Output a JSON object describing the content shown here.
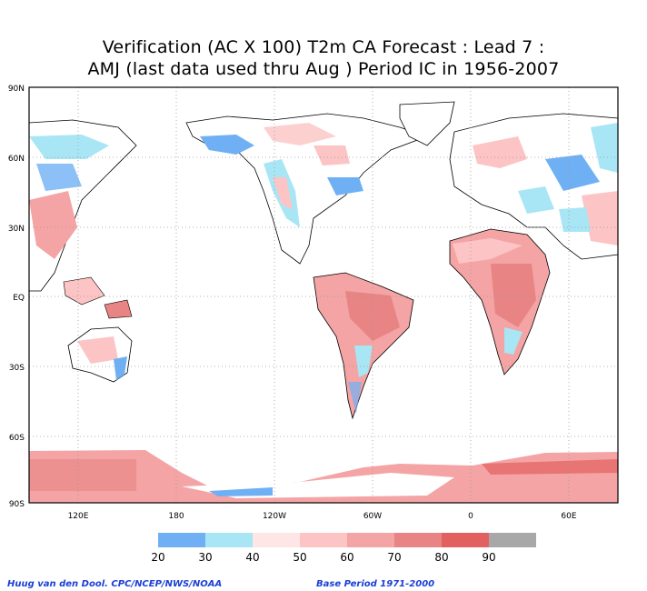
{
  "title_line1": "Verification (AC X 100) T2m CA Forecast : Lead 7 :",
  "title_line2": "AMJ (last data used thru Aug ) Period IC in 1956-2007",
  "lat_labels": [
    "90N",
    "60N",
    "30N",
    "EQ",
    "30S",
    "60S",
    "90S"
  ],
  "lon_labels": [
    "120E",
    "180",
    "120W",
    "60W",
    "0",
    "60E"
  ],
  "legend": {
    "ticks": [
      "20",
      "30",
      "40",
      "50",
      "60",
      "70",
      "80",
      "90"
    ],
    "colors": [
      "#6fb0f5",
      "#a8e6f5",
      "#ffe6e6",
      "#fcc4c4",
      "#f4a4a4",
      "#e88484",
      "#e36060",
      "#a8a8a8"
    ]
  },
  "footer": {
    "credit": "Huug van den Dool. CPC/NCEP/NWS/NOAA",
    "base_period": "Base Period 1971-2000"
  },
  "colors": {
    "ocean": "#ffffff",
    "coast": "#000000",
    "grid": "#9a9a9a"
  }
}
